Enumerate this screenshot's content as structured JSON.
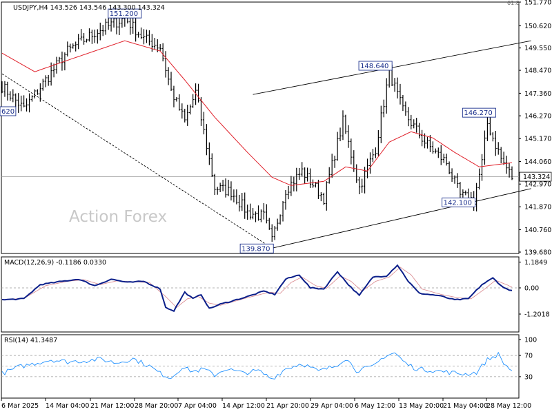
{
  "chart_data": [
    {
      "type": "candlestick",
      "title": "USDJPY,H4  143.526 143.546 143.300 143.324",
      "watermark": "Action Forex",
      "y_ticks": [
        "151.770",
        "150.620",
        "149.550",
        "148.470",
        "147.360",
        "146.270",
        "145.170",
        "144.060",
        "142.970",
        "141.870",
        "140.760",
        "139.680"
      ],
      "top_edge_label": "61.8",
      "ylim": [
        139.68,
        151.77
      ],
      "current_price": 143.324,
      "current_price_label": "143.324",
      "x_ticks": [
        "6 Mar 2025",
        "14 Mar 04:00",
        "21 Mar 12:00",
        "28 Mar 20:00",
        "7 Apr 04:00",
        "14 Apr 12:00",
        "21 Apr 20:00",
        "29 Apr 04:00",
        "6 May 12:00",
        "13 May 20:00",
        "21 May 04:00",
        "28 May 12:00"
      ],
      "annotations": [
        {
          "label": "151.200",
          "value": 151.2,
          "i": 45
        },
        {
          "label": "148.640",
          "value": 148.64,
          "i": 142
        },
        {
          "label": "146.270",
          "value": 146.27,
          "i": 178
        },
        {
          "label": "142.100",
          "value": 142.1,
          "i": 172
        },
        {
          "label": "139.870",
          "value": 139.87,
          "i": 99
        },
        {
          "label": "620",
          "value": 146.62,
          "i": 0
        }
      ],
      "close_anchors": [
        [
          0,
          147.7
        ],
        [
          8,
          146.6
        ],
        [
          16,
          148.0
        ],
        [
          24,
          149.4
        ],
        [
          34,
          150.3
        ],
        [
          45,
          151.0
        ],
        [
          52,
          150.0
        ],
        [
          58,
          149.6
        ],
        [
          62,
          147.5
        ],
        [
          67,
          146.0
        ],
        [
          71,
          147.4
        ],
        [
          74,
          145.5
        ],
        [
          78,
          142.8
        ],
        [
          84,
          142.6
        ],
        [
          90,
          141.6
        ],
        [
          96,
          141.4
        ],
        [
          99,
          140.2
        ],
        [
          104,
          142.7
        ],
        [
          110,
          143.6
        ],
        [
          118,
          142.3
        ],
        [
          125,
          146.0
        ],
        [
          131,
          142.8
        ],
        [
          137,
          144.7
        ],
        [
          142,
          148.4
        ],
        [
          147,
          146.5
        ],
        [
          155,
          145.0
        ],
        [
          163,
          144.0
        ],
        [
          168,
          142.4
        ],
        [
          173,
          142.2
        ],
        [
          176,
          144.0
        ],
        [
          178,
          145.9
        ],
        [
          183,
          144.2
        ],
        [
          187,
          143.3
        ]
      ],
      "ma_anchors": [
        [
          0,
          149.3
        ],
        [
          12,
          148.4
        ],
        [
          25,
          149.0
        ],
        [
          45,
          149.9
        ],
        [
          58,
          149.4
        ],
        [
          67,
          148.0
        ],
        [
          78,
          146.2
        ],
        [
          90,
          144.5
        ],
        [
          99,
          143.3
        ],
        [
          106,
          142.9
        ],
        [
          118,
          143.1
        ],
        [
          126,
          143.8
        ],
        [
          134,
          143.6
        ],
        [
          142,
          145.0
        ],
        [
          150,
          145.5
        ],
        [
          158,
          145.2
        ],
        [
          166,
          144.5
        ],
        [
          175,
          143.8
        ],
        [
          187,
          144.0
        ]
      ],
      "trendlines": [
        {
          "style": "solid",
          "from": [
            99,
            139.87
          ],
          "to": [
            194,
            142.75
          ]
        },
        {
          "style": "solid",
          "from": [
            92,
            147.3
          ],
          "to": [
            194,
            149.9
          ]
        },
        {
          "style": "dashed",
          "from": [
            0,
            148.3
          ],
          "to": [
            99,
            139.87
          ]
        }
      ]
    },
    {
      "type": "line",
      "title": "MACD(12,26,9) -0.1186 0.0330",
      "y_ticks": [
        "1.1849",
        "0.00",
        "-1.2018"
      ],
      "ylim": [
        -1.2018,
        1.1849
      ],
      "macd_anchors": [
        [
          0,
          -0.55
        ],
        [
          8,
          -0.5
        ],
        [
          14,
          0.15
        ],
        [
          22,
          0.3
        ],
        [
          28,
          0.4
        ],
        [
          34,
          0.1
        ],
        [
          40,
          0.4
        ],
        [
          46,
          0.25
        ],
        [
          52,
          0.3
        ],
        [
          58,
          -0.05
        ],
        [
          60,
          -0.9
        ],
        [
          63,
          -1.05
        ],
        [
          67,
          -0.2
        ],
        [
          70,
          -0.5
        ],
        [
          73,
          -0.3
        ],
        [
          76,
          -0.95
        ],
        [
          80,
          -0.75
        ],
        [
          90,
          -0.4
        ],
        [
          96,
          -0.15
        ],
        [
          100,
          -0.3
        ],
        [
          104,
          0.4
        ],
        [
          109,
          0.6
        ],
        [
          113,
          0.0
        ],
        [
          118,
          -0.05
        ],
        [
          123,
          0.75
        ],
        [
          127,
          0.15
        ],
        [
          131,
          -0.35
        ],
        [
          136,
          0.5
        ],
        [
          141,
          0.55
        ],
        [
          145,
          1.05
        ],
        [
          149,
          0.3
        ],
        [
          153,
          -0.25
        ],
        [
          160,
          -0.35
        ],
        [
          166,
          -0.55
        ],
        [
          171,
          -0.5
        ],
        [
          176,
          0.15
        ],
        [
          180,
          0.45
        ],
        [
          184,
          0.0
        ],
        [
          187,
          -0.12
        ]
      ],
      "signal_anchors": [
        [
          0,
          -0.55
        ],
        [
          8,
          -0.48
        ],
        [
          16,
          0.1
        ],
        [
          24,
          0.3
        ],
        [
          30,
          0.38
        ],
        [
          36,
          0.15
        ],
        [
          42,
          0.32
        ],
        [
          48,
          0.28
        ],
        [
          54,
          0.25
        ],
        [
          60,
          -0.4
        ],
        [
          64,
          -0.9
        ],
        [
          68,
          -0.5
        ],
        [
          72,
          -0.4
        ],
        [
          76,
          -0.7
        ],
        [
          80,
          -0.8
        ],
        [
          90,
          -0.45
        ],
        [
          98,
          -0.2
        ],
        [
          102,
          -0.25
        ],
        [
          106,
          0.25
        ],
        [
          110,
          0.5
        ],
        [
          115,
          0.1
        ],
        [
          119,
          -0.02
        ],
        [
          124,
          0.55
        ],
        [
          128,
          0.3
        ],
        [
          132,
          -0.15
        ],
        [
          137,
          0.3
        ],
        [
          142,
          0.5
        ],
        [
          146,
          0.95
        ],
        [
          150,
          0.6
        ],
        [
          154,
          -0.05
        ],
        [
          161,
          -0.3
        ],
        [
          167,
          -0.45
        ],
        [
          172,
          -0.5
        ],
        [
          177,
          -0.05
        ],
        [
          181,
          0.35
        ],
        [
          185,
          0.15
        ],
        [
          187,
          0.03
        ]
      ]
    },
    {
      "type": "line",
      "title": "RSI(14) 41.3487",
      "y_ticks": [
        "100",
        "70",
        "30"
      ],
      "ylim": [
        0,
        100
      ],
      "levels": [
        70,
        50,
        30
      ],
      "rsi_anchors": [
        [
          0,
          36
        ],
        [
          6,
          48
        ],
        [
          12,
          55
        ],
        [
          18,
          62
        ],
        [
          24,
          58
        ],
        [
          30,
          60
        ],
        [
          36,
          63
        ],
        [
          42,
          56
        ],
        [
          48,
          64
        ],
        [
          54,
          50
        ],
        [
          58,
          36
        ],
        [
          62,
          28
        ],
        [
          66,
          48
        ],
        [
          70,
          40
        ],
        [
          74,
          44
        ],
        [
          78,
          33
        ],
        [
          82,
          45
        ],
        [
          88,
          37
        ],
        [
          94,
          41
        ],
        [
          99,
          26
        ],
        [
          104,
          45
        ],
        [
          110,
          55
        ],
        [
          116,
          40
        ],
        [
          122,
          50
        ],
        [
          126,
          65
        ],
        [
          130,
          42
        ],
        [
          136,
          48
        ],
        [
          140,
          68
        ],
        [
          144,
          75
        ],
        [
          148,
          55
        ],
        [
          152,
          45
        ],
        [
          158,
          42
        ],
        [
          164,
          38
        ],
        [
          170,
          35
        ],
        [
          174,
          38
        ],
        [
          178,
          62
        ],
        [
          182,
          72
        ],
        [
          184,
          55
        ],
        [
          187,
          41
        ]
      ]
    }
  ]
}
